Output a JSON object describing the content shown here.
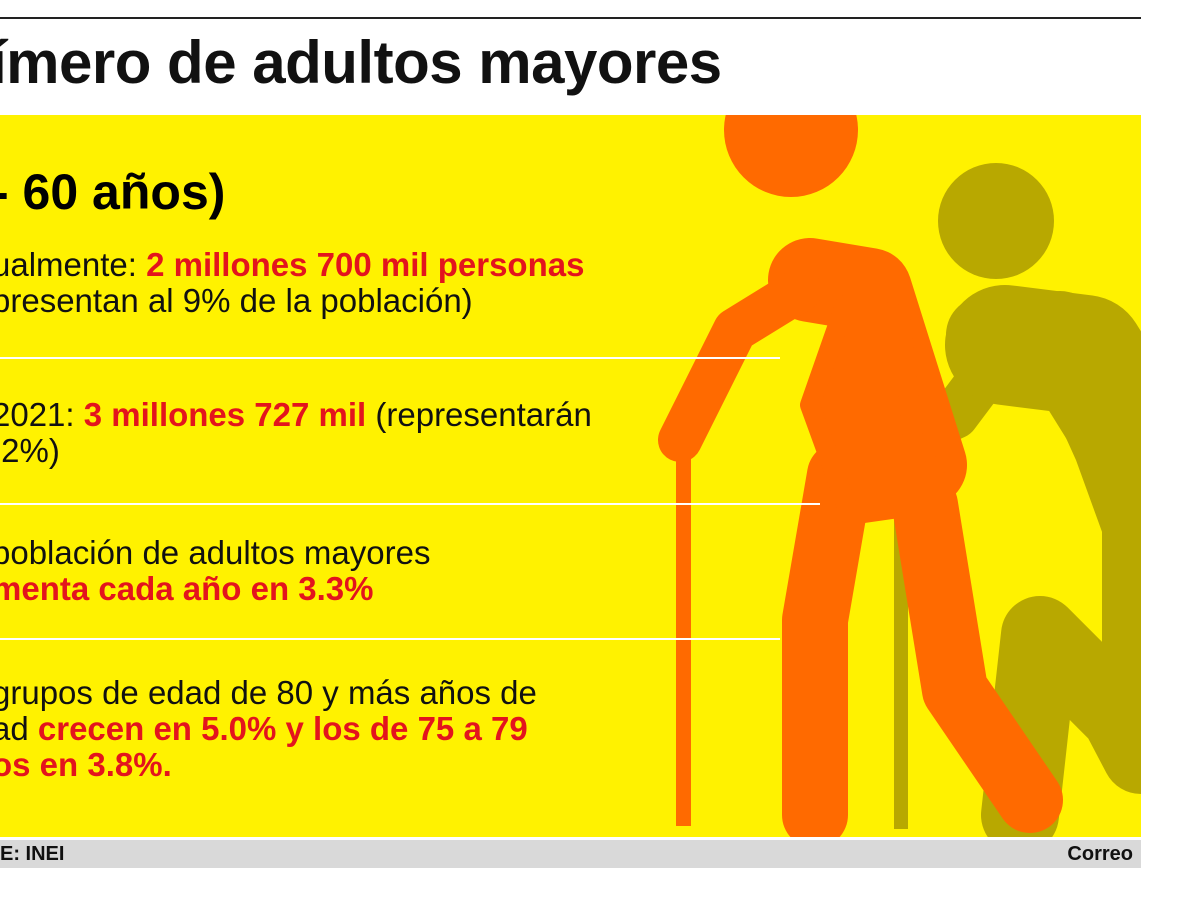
{
  "header": {
    "title": "ímero de adultos mayores"
  },
  "panel": {
    "age_label": "- 60 años)",
    "facts": [
      {
        "line1_prefix": "ualmente: ",
        "line1_highlight": "2 millones 700 mil personas",
        "line2": "presentan al 9% de la población)"
      },
      {
        "line1_prefix": "2021: ",
        "line1_highlight": "3 millones 727 mil",
        "line1_suffix": " (representarán",
        "line2": ".2%)"
      },
      {
        "line1": "población de adultos mayores",
        "line2_highlight": "menta cada año en 3.3%"
      },
      {
        "line1": " grupos de edad de 80 y más años de",
        "line2_prefix": "ad ",
        "line2_highlight": "crecen en 5.0% y los de 75 a 79",
        "line3_highlight": "os en 3.8%."
      }
    ]
  },
  "colors": {
    "panel_bg": "#fff200",
    "highlight": "#e3141d",
    "front_figure": "#ff6a00",
    "back_figure": "#b8a800",
    "footer_bg": "#d9d9d9"
  },
  "icons": [
    "elderly-person-with-cane-icon",
    "elderly-person-with-cane-icon"
  ],
  "footer": {
    "source": "E: INEI",
    "brand": "Correo"
  }
}
